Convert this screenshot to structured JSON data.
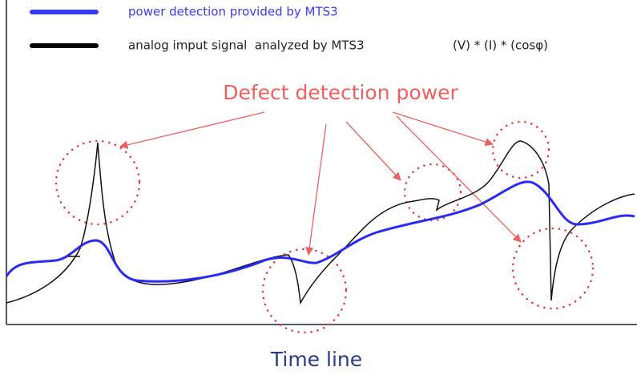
{
  "legend": [
    {
      "label": "power detection provided by MTS3"
    },
    {
      "label": "analog imput signal  analyzed by MTS3",
      "formula": "(V) * (I) * (cosφ)"
    }
  ],
  "annotation": "Defect detection power",
  "x_axis_label": "Time line"
}
